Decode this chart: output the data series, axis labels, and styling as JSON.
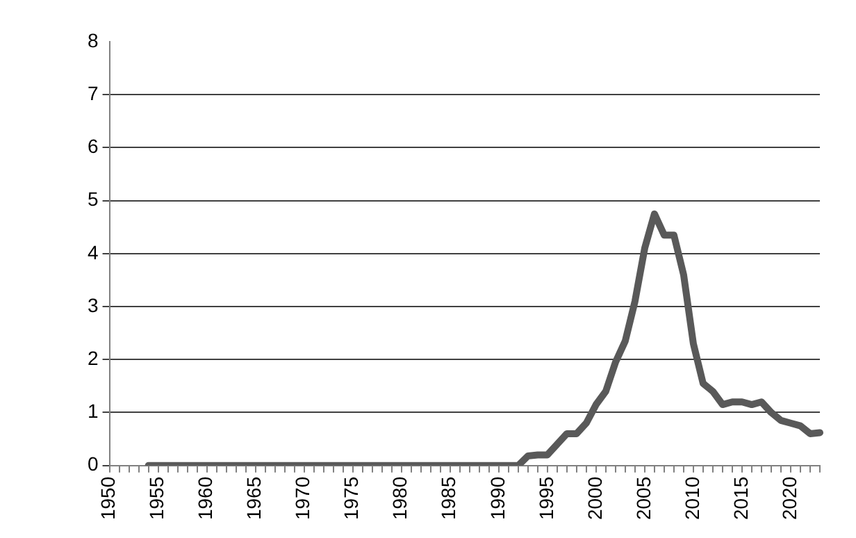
{
  "chart_data": {
    "type": "line",
    "categories": [
      "1950",
      null,
      null,
      null,
      null,
      "1955",
      null,
      null,
      null,
      null,
      "1960",
      null,
      null,
      null,
      null,
      "1965",
      null,
      null,
      null,
      null,
      "1970",
      null,
      null,
      null,
      null,
      "1975",
      null,
      null,
      null,
      null,
      "1980",
      null,
      null,
      null,
      null,
      "1985",
      null,
      null,
      null,
      null,
      "1990",
      null,
      null,
      null,
      null,
      "1995",
      null,
      null,
      null,
      null,
      "2000",
      null,
      null,
      null,
      null,
      "2005",
      null,
      null,
      null,
      null,
      "2010",
      null,
      null,
      null,
      null,
      "2015",
      null,
      null,
      null,
      null,
      "2020",
      null,
      null,
      null
    ],
    "series": [
      {
        "color": "#595959",
        "values": [
          null,
          null,
          null,
          null,
          0,
          0,
          0,
          0,
          0,
          0,
          0,
          0,
          0,
          0,
          0,
          0,
          0,
          0,
          0,
          0,
          0,
          0,
          0,
          0,
          0,
          0,
          0,
          0,
          0,
          0,
          0,
          0,
          0,
          0,
          0,
          0,
          0,
          0,
          0,
          0,
          0,
          0,
          0,
          0.18,
          0.2,
          0.2,
          0.4,
          0.6,
          0.6,
          0.8,
          1.15,
          1.4,
          1.95,
          2.35,
          3.1,
          4.1,
          4.75,
          4.35,
          4.35,
          3.6,
          2.3,
          1.55,
          1.4,
          1.15,
          1.2,
          1.2,
          1.15,
          1.2,
          1.0,
          0.85,
          0.8,
          0.75,
          0.6,
          0.62
        ]
      }
    ],
    "ylim": [
      0,
      8
    ],
    "yticks": [
      0,
      1,
      2,
      3,
      4,
      5,
      6,
      7,
      8
    ],
    "grid": "y",
    "legend": false,
    "marker": "none",
    "line_style": "solid"
  }
}
